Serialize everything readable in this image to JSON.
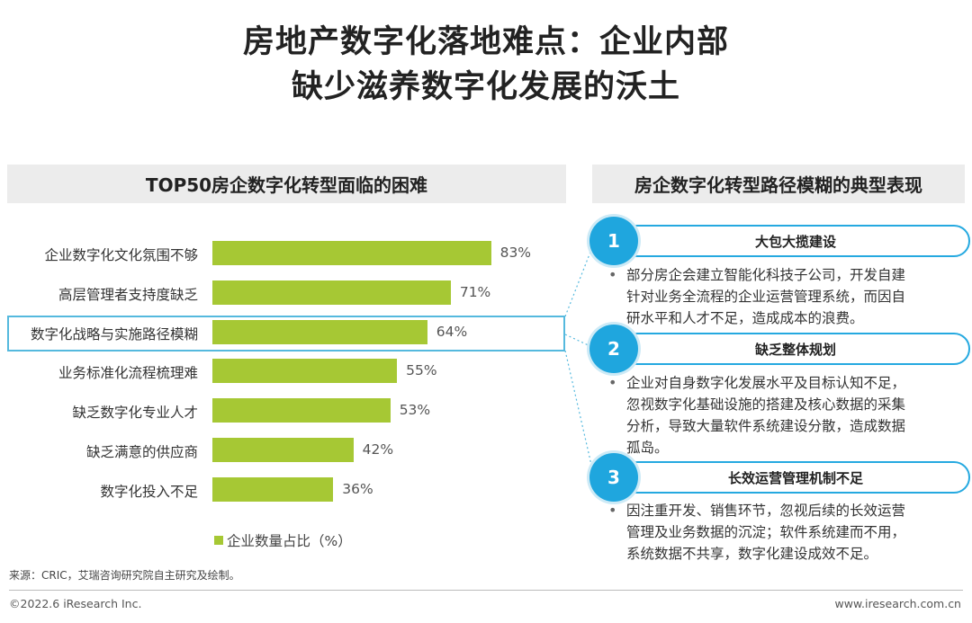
{
  "title": {
    "line1": "房地产数字化落地难点：企业内部",
    "line2": "缺少滋养数字化发展的沃土"
  },
  "left_panel": {
    "header": "TOP50房企数字化转型面临的困难"
  },
  "right_panel": {
    "header": "房企数字化转型路径模糊的典型表现"
  },
  "chart_data": {
    "type": "bar",
    "orientation": "horizontal",
    "categories": [
      "企业数字化文化氛围不够",
      "高层管理者支持度缺乏",
      "数字化战略与实施路径模糊",
      "业务标准化流程梳理难",
      "缺乏数字化专业人才",
      "缺乏满意的供应商",
      "数字化投入不足"
    ],
    "values": [
      83,
      71,
      64,
      55,
      53,
      42,
      36
    ],
    "value_labels": [
      "83%",
      "71%",
      "64%",
      "55%",
      "53%",
      "42%",
      "36%"
    ],
    "series": [
      {
        "name": "企业数量占比（%）",
        "values": [
          83,
          71,
          64,
          55,
          53,
          42,
          36
        ]
      }
    ],
    "highlighted_category": "数字化战略与实施路径模糊",
    "xlim": [
      0,
      100
    ],
    "grid": false,
    "legend_position": "bottom",
    "colors": {
      "bar": "#a6c834",
      "highlight": "#55b9de"
    }
  },
  "legend": {
    "label": "企业数量占比（%）"
  },
  "items": [
    {
      "number": "1",
      "title": "大包大揽建设",
      "desc": [
        "部分房企会建立智能化科技子公司，开发自建",
        "针对业务全流程的企业运营管理系统，而因自",
        "研水平和人才不足，造成成本的浪费。"
      ]
    },
    {
      "number": "2",
      "title": "缺乏整体规划",
      "desc": [
        "企业对自身数字化发展水平及目标认知不足，",
        "忽视数字化基础设施的搭建及核心数据的采集",
        "分析，导致大量软件系统建设分散，造成数据",
        "孤岛。"
      ]
    },
    {
      "number": "3",
      "title": "长效运营管理机制不足",
      "desc": [
        "因注重开发、销售环节，忽视后续的长效运营",
        "管理及业务数据的沉淀；软件系统建而不用，",
        "系统数据不共享，数字化建设成效不足。"
      ]
    }
  ],
  "source": "来源：CRIC，艾瑞咨询研究院自主研究及绘制。",
  "footer": {
    "copyright": "©2022.6 iResearch Inc.",
    "website": "www.iresearch.com.cn"
  },
  "colors": {
    "accent_blue": "#1fa6de",
    "panel_gray": "#ececec"
  }
}
